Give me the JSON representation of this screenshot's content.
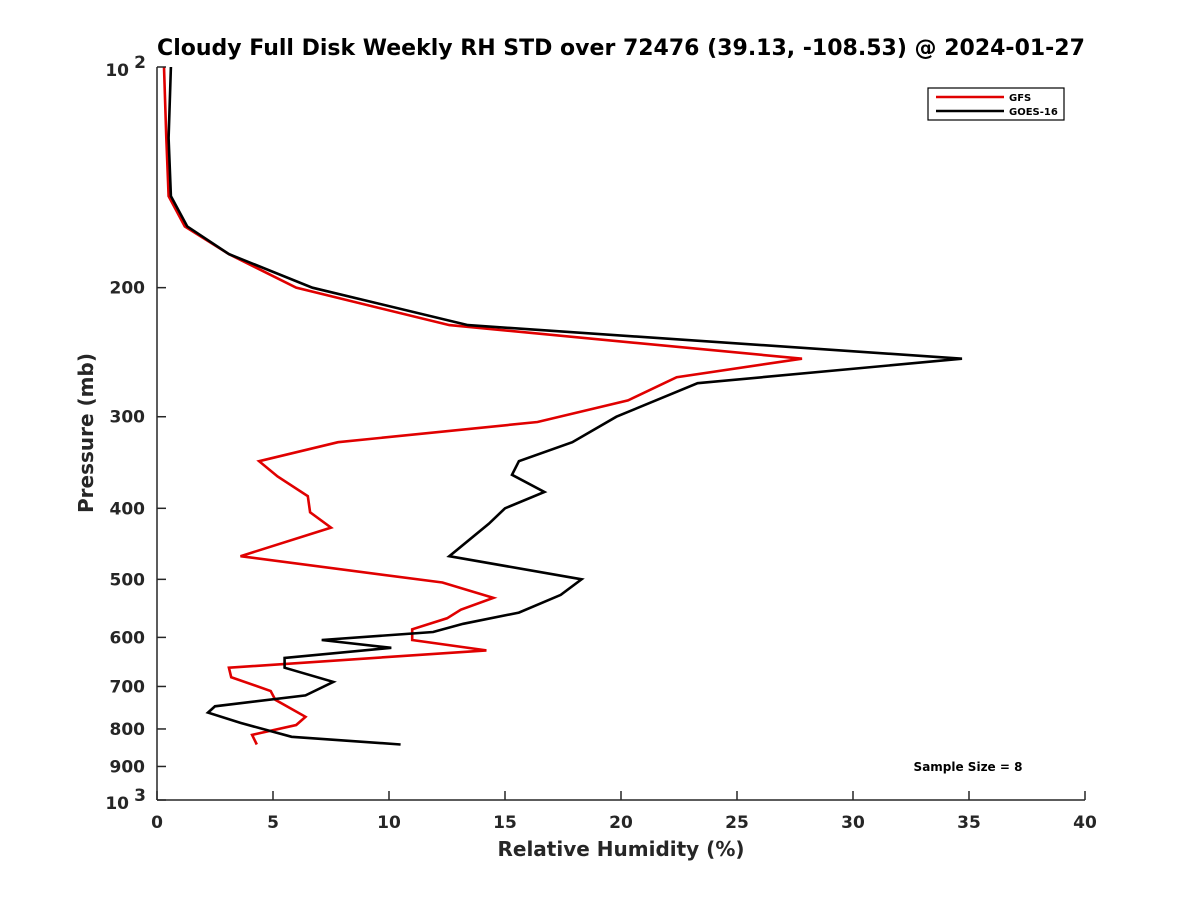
{
  "chart_data": {
    "type": "line",
    "title": "Cloudy Full Disk Weekly RH STD over 72476 (39.13, -108.53) @ 2024-01-27",
    "xlabel": "Relative Humidity (%)",
    "ylabel": "Pressure (mb)",
    "xlim": [
      0,
      40
    ],
    "ylim": [
      100,
      1000
    ],
    "y_scale": "log",
    "y_reversed": true,
    "x_ticks": [
      0,
      5,
      10,
      15,
      20,
      25,
      30,
      35,
      40
    ],
    "x_tick_labels": [
      "0",
      "5",
      "10",
      "15",
      "20",
      "25",
      "30",
      "35",
      "40"
    ],
    "y_ticks": [
      {
        "value": 100,
        "base": "10",
        "exp": "2"
      },
      {
        "value": 200,
        "label": "200"
      },
      {
        "value": 300,
        "label": "300"
      },
      {
        "value": 400,
        "label": "400"
      },
      {
        "value": 500,
        "label": "500"
      },
      {
        "value": 600,
        "label": "600"
      },
      {
        "value": 700,
        "label": "700"
      },
      {
        "value": 800,
        "label": "800"
      },
      {
        "value": 900,
        "label": "900"
      },
      {
        "value": 1000,
        "base": "10",
        "exp": "3"
      }
    ],
    "grid": false,
    "legend_position": "top-right",
    "series": [
      {
        "name": "GFS",
        "color": "#e00000",
        "points": [
          [
            0.3,
            100
          ],
          [
            0.4,
            125
          ],
          [
            0.5,
            150
          ],
          [
            1.2,
            165
          ],
          [
            3.1,
            180
          ],
          [
            6.0,
            200
          ],
          [
            12.6,
            225
          ],
          [
            27.8,
            250
          ],
          [
            22.4,
            265
          ],
          [
            20.3,
            285
          ],
          [
            16.4,
            305
          ],
          [
            7.8,
            325
          ],
          [
            4.4,
            345
          ],
          [
            5.2,
            362
          ],
          [
            6.5,
            385
          ],
          [
            6.6,
            405
          ],
          [
            7.5,
            425
          ],
          [
            3.6,
            465
          ],
          [
            12.3,
            505
          ],
          [
            14.5,
            530
          ],
          [
            13.1,
            550
          ],
          [
            12.5,
            565
          ],
          [
            11.0,
            585
          ],
          [
            11.0,
            605
          ],
          [
            14.2,
            625
          ],
          [
            3.1,
            660
          ],
          [
            3.2,
            680
          ],
          [
            4.9,
            710
          ],
          [
            5.1,
            730
          ],
          [
            6.4,
            770
          ],
          [
            6.0,
            790
          ],
          [
            4.1,
            815
          ],
          [
            4.3,
            840
          ]
        ]
      },
      {
        "name": "GOES-16",
        "color": "#000000",
        "points": [
          [
            0.6,
            100
          ],
          [
            0.5,
            125
          ],
          [
            0.6,
            150
          ],
          [
            1.3,
            165
          ],
          [
            3.1,
            180
          ],
          [
            6.7,
            200
          ],
          [
            13.4,
            225
          ],
          [
            34.7,
            250
          ],
          [
            23.3,
            270
          ],
          [
            19.8,
            300
          ],
          [
            17.9,
            325
          ],
          [
            15.6,
            345
          ],
          [
            15.3,
            360
          ],
          [
            16.7,
            380
          ],
          [
            15.0,
            400
          ],
          [
            14.3,
            420
          ],
          [
            12.6,
            465
          ],
          [
            18.3,
            500
          ],
          [
            17.4,
            525
          ],
          [
            15.6,
            555
          ],
          [
            13.2,
            575
          ],
          [
            11.9,
            590
          ],
          [
            7.1,
            605
          ],
          [
            10.1,
            620
          ],
          [
            5.5,
            640
          ],
          [
            5.5,
            660
          ],
          [
            7.6,
            690
          ],
          [
            6.4,
            720
          ],
          [
            2.5,
            745
          ],
          [
            2.2,
            760
          ],
          [
            3.6,
            785
          ],
          [
            5.8,
            820
          ],
          [
            10.5,
            840
          ]
        ]
      }
    ],
    "annotations": [
      "Sample Size = 8"
    ]
  }
}
